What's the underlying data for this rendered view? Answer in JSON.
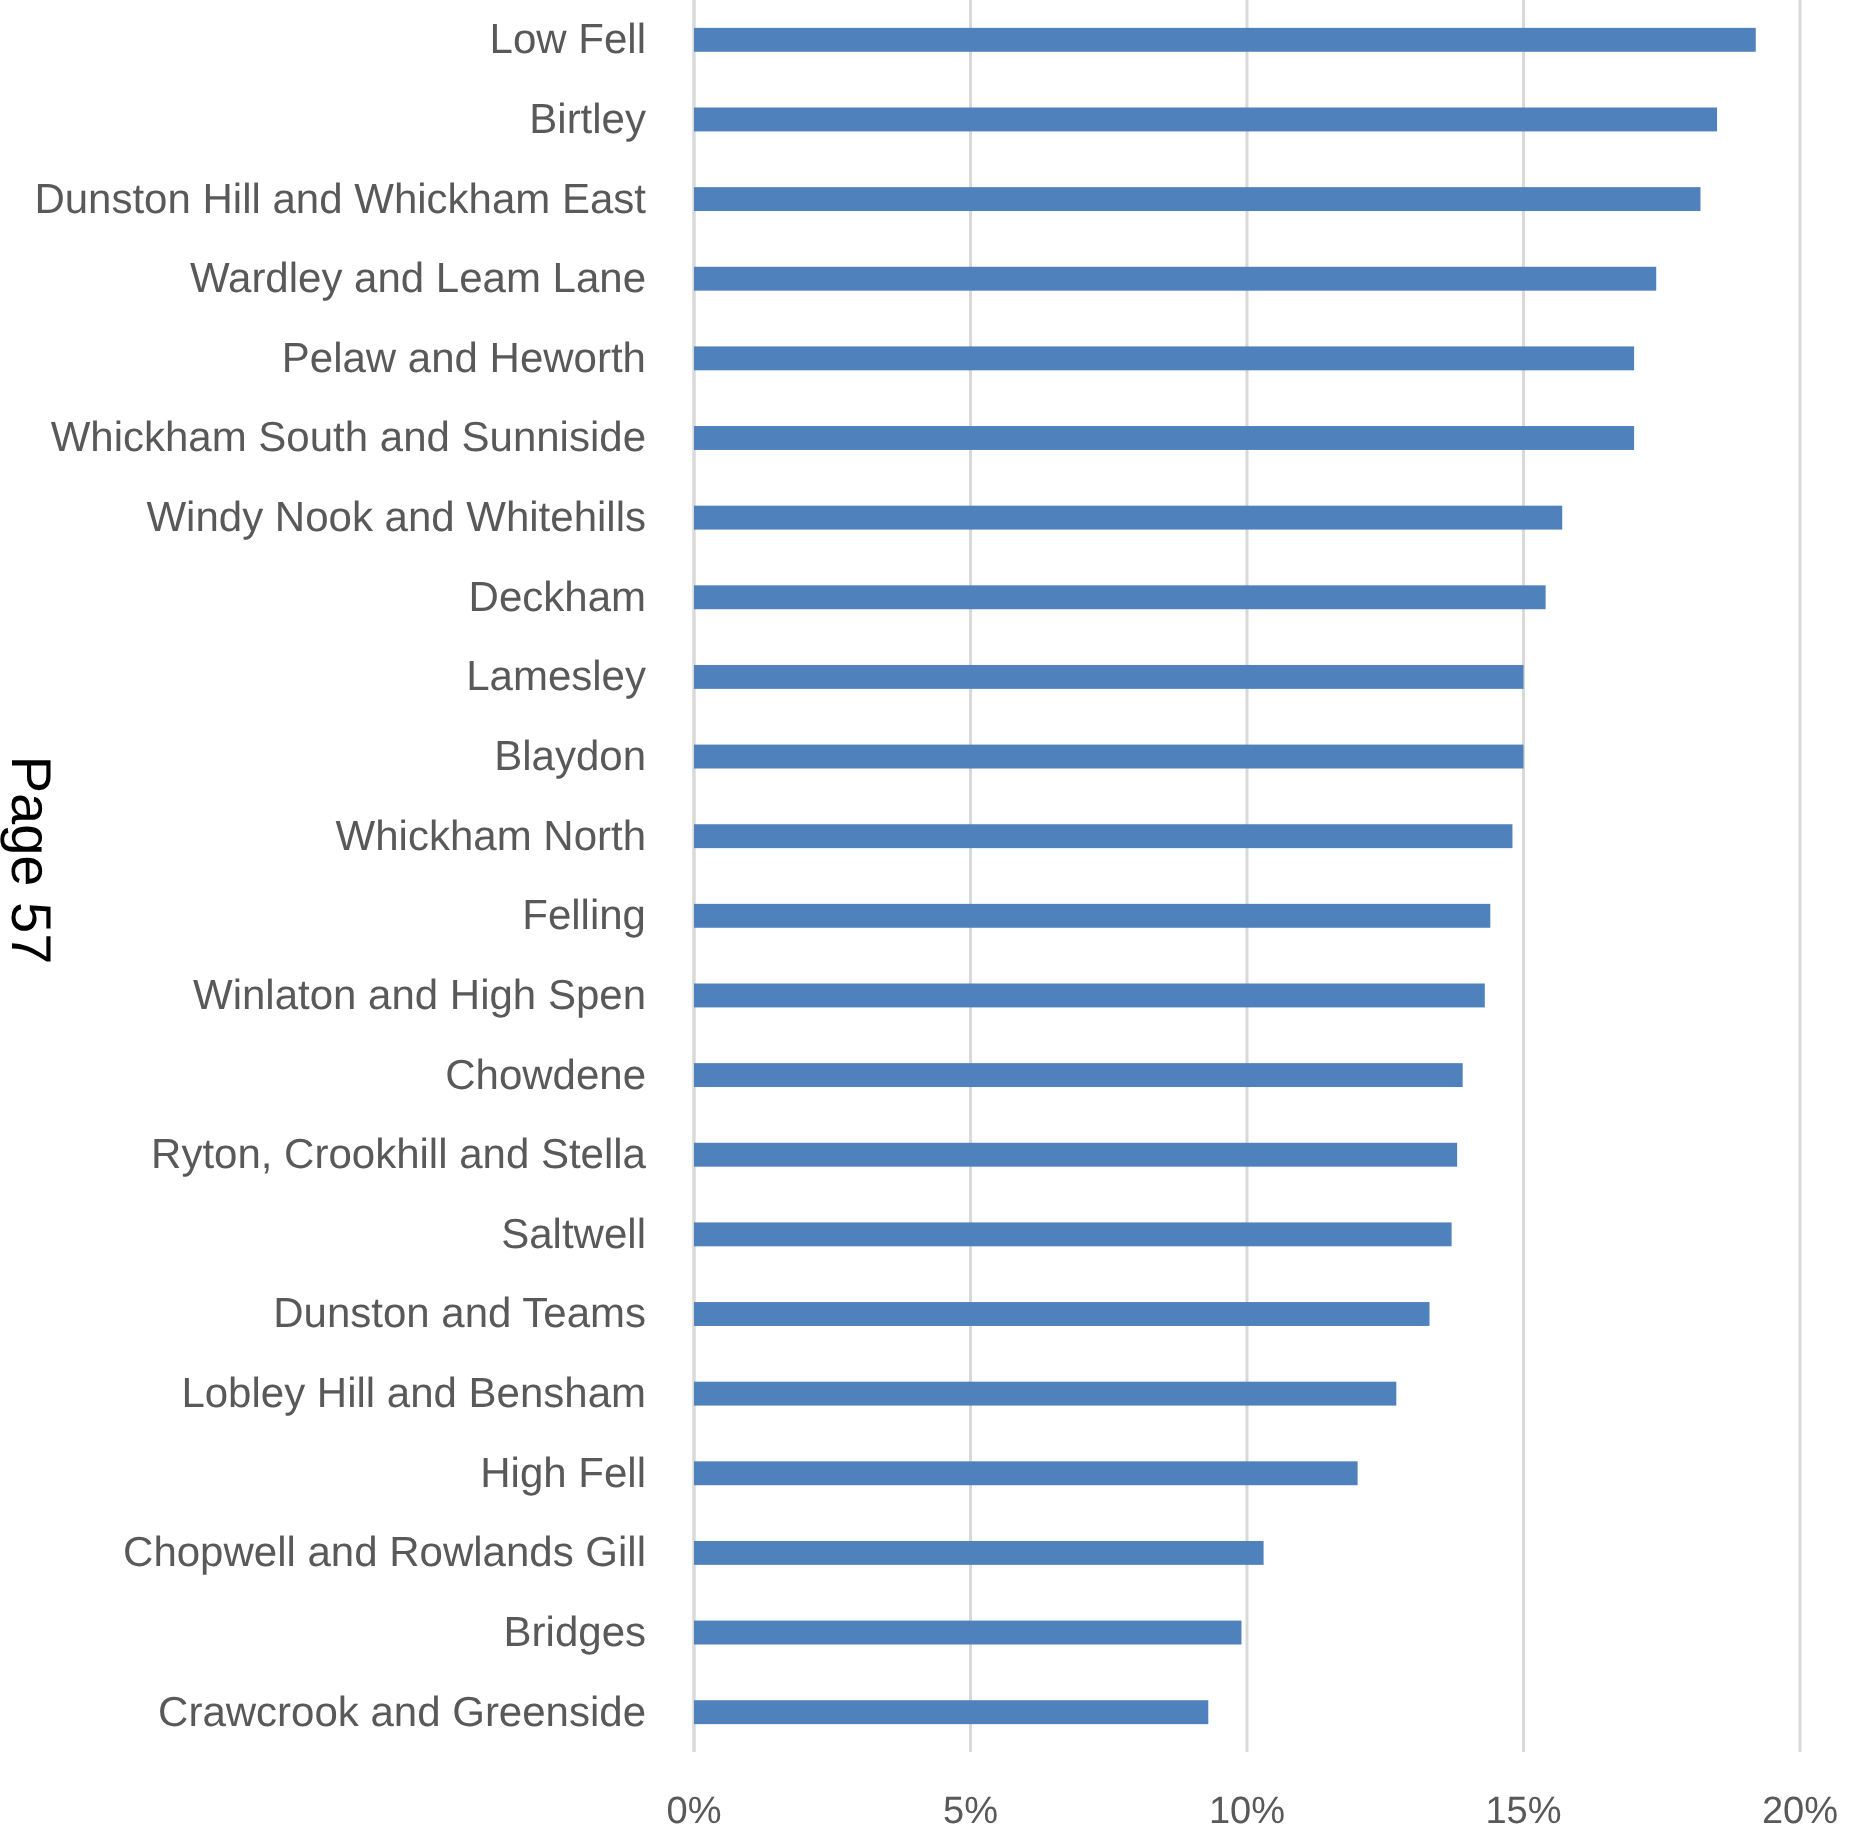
{
  "chart_data": {
    "type": "bar",
    "orientation": "horizontal",
    "categories": [
      "Low Fell",
      "Birtley",
      "Dunston Hill and Whickham East",
      "Wardley and Leam Lane",
      "Pelaw and Heworth",
      "Whickham South and Sunniside",
      "Windy Nook and Whitehills",
      "Deckham",
      "Lamesley",
      "Blaydon",
      "Whickham North",
      "Felling",
      "Winlaton and High Spen",
      "Chowdene",
      "Ryton, Crookhill and Stella",
      "Saltwell",
      "Dunston and Teams",
      "Lobley Hill and Bensham",
      "High Fell",
      "Chopwell and Rowlands Gill",
      "Bridges",
      "Crawcrook and Greenside"
    ],
    "values": [
      19.2,
      18.5,
      18.2,
      17.4,
      17.0,
      17.0,
      15.7,
      15.4,
      15.0,
      15.0,
      14.8,
      14.4,
      14.3,
      13.9,
      13.8,
      13.7,
      13.3,
      12.7,
      12.0,
      10.3,
      9.9,
      9.3
    ],
    "color": "#4f81bd",
    "xlim": [
      0,
      20
    ],
    "xticks": [
      {
        "value": 0,
        "label": "0%"
      },
      {
        "value": 5,
        "label": "5%"
      },
      {
        "value": 10,
        "label": "10%"
      },
      {
        "value": 15,
        "label": "15%"
      },
      {
        "value": 20,
        "label": "20%"
      }
    ],
    "grid": "x",
    "annotations": [
      "Page 57"
    ]
  }
}
